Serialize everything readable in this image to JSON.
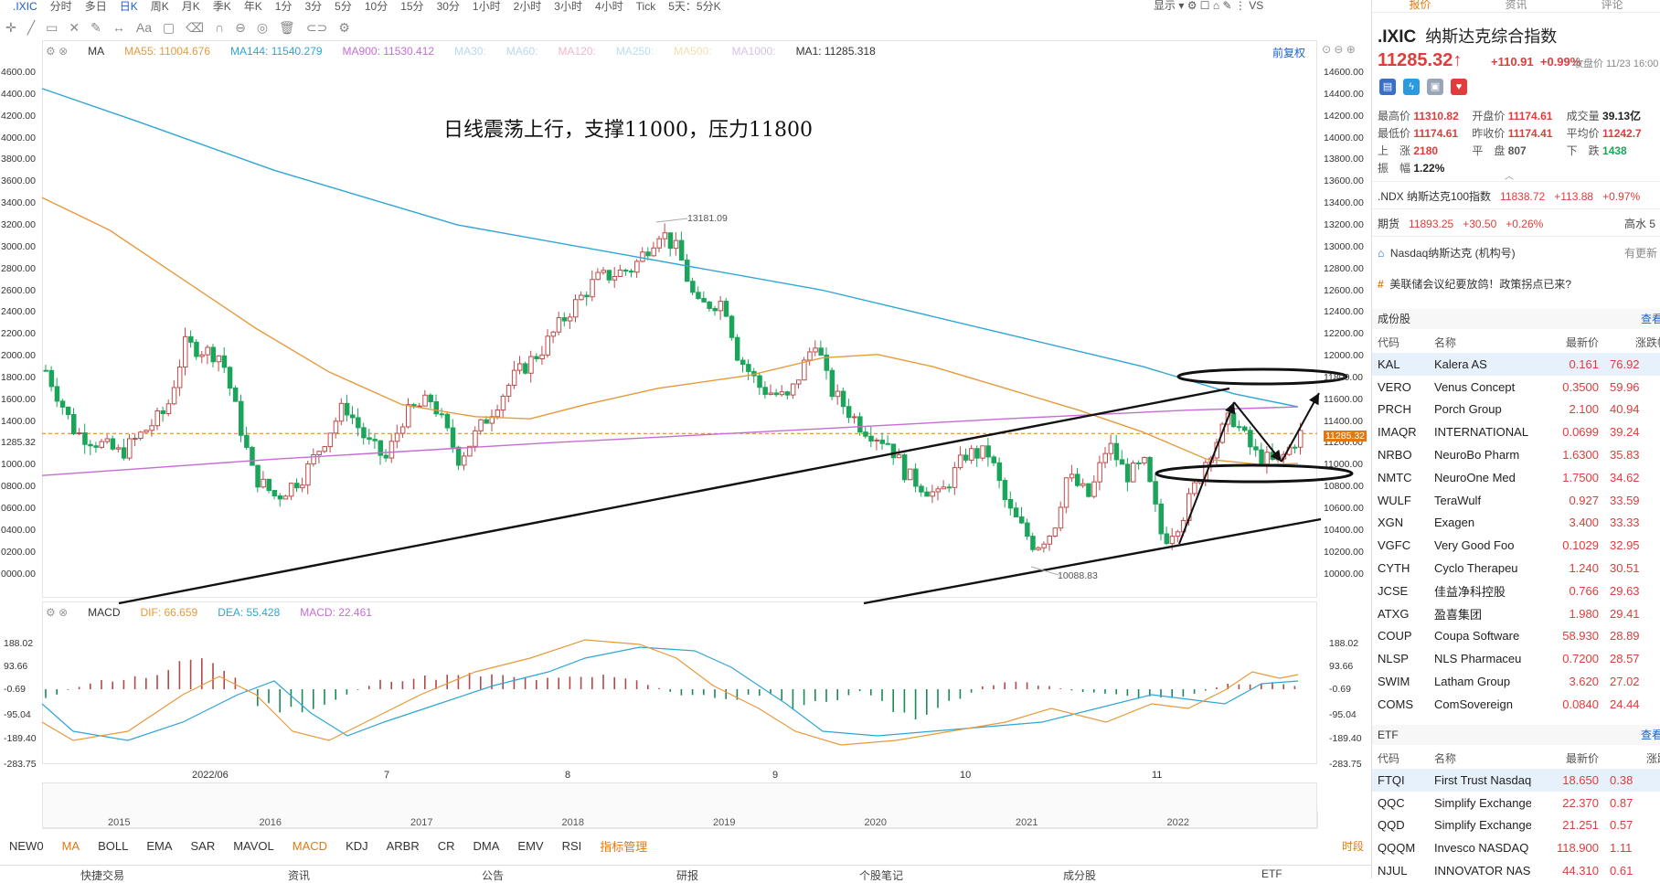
{
  "topbar": {
    "symbol": ".IXIC",
    "periods": [
      "分时",
      "多日",
      "日K",
      "周K",
      "月K",
      "季K",
      "年K",
      "1分",
      "3分",
      "5分",
      "10分",
      "15分",
      "30分",
      "1小时",
      "2小时",
      "3小时",
      "4小时",
      "Tick",
      "5天：5分K"
    ],
    "active_period": "日K",
    "display": "显示",
    "vs": "VS"
  },
  "main": {
    "ma_legend": {
      "label": "MA",
      "ma55": "MA55: 11004.676",
      "ma144": "MA144: 11540.279",
      "ma900": "MA900: 11530.412",
      "ma30": "MA30:",
      "ma60": "MA60:",
      "ma120": "MA120:",
      "ma250": "MA250:",
      "ma500": "MA500:",
      "ma1000": "MA1000:",
      "ma1": "MA1: 11285.318"
    },
    "fq": "前复权",
    "annotation": "日线震荡上行，支撑11000，压力11800",
    "high_label": "13181.09",
    "low_label": "10088.83",
    "current_price_tag": "11285.32",
    "y_ticks": [
      "14600.00",
      "14400.00",
      "14200.00",
      "14000.00",
      "13800.00",
      "13600.00",
      "13400.00",
      "13200.00",
      "13000.00",
      "12800.00",
      "12600.00",
      "12400.00",
      "12200.00",
      "12000.00",
      "11800.00",
      "11600.00",
      "11400.00",
      "11200.00",
      "11000.00",
      "10800.00",
      "10600.00",
      "10400.00",
      "10200.00",
      "10000.00"
    ],
    "y_ticks_left": [
      "4600.00",
      "4400.00",
      "4200.00",
      "4000.00",
      "3800.00",
      "3600.00",
      "3400.00",
      "3200.00",
      "3000.00",
      "2800.00",
      "2600.00",
      "2400.00",
      "2200.00",
      "2000.00",
      "1800.00",
      "1600.00",
      "1400.00",
      "1285.32",
      "1000.00",
      "0800.00",
      "0600.00",
      "0400.00",
      "0200.00",
      "0000.00"
    ],
    "x_labels": [
      "2022/06",
      "7",
      "8",
      "9",
      "10",
      "11"
    ]
  },
  "macd": {
    "label": "MACD",
    "dif": "DIF: 66.659",
    "dea": "DEA: 55.428",
    "macd": "MACD: 22.461",
    "y_ticks": [
      "188.02",
      "93.66",
      "-0.69",
      "-95.04",
      "-189.40",
      "-283.75"
    ]
  },
  "overview": {
    "years": [
      "2015",
      "2016",
      "2017",
      "2018",
      "2019",
      "2020",
      "2021",
      "2022"
    ]
  },
  "indicators": {
    "items": [
      "NEW0",
      "MA",
      "BOLL",
      "EMA",
      "SAR",
      "MAVOL",
      "MACD",
      "KDJ",
      "ARBR",
      "CR",
      "DMA",
      "EMV",
      "RSI"
    ],
    "active": [
      "MA",
      "MACD"
    ],
    "manage": "指标管理",
    "time": "时段"
  },
  "bottombar": {
    "items": [
      "快捷交易",
      "资讯",
      "公告",
      "研报",
      "个股笔记",
      "成分股",
      "ETF"
    ]
  },
  "right": {
    "tabs": [
      "报价",
      "资讯",
      "评论"
    ],
    "symbol": ".IXIC",
    "name": "纳斯达克综合指数",
    "price": "11285.32",
    "arrow": "↑",
    "change": "+110.91",
    "pct": "+0.99%",
    "close_time": "收盘价 11/23 16:00",
    "quote": [
      [
        {
          "k": "最高价",
          "v": "11310.82"
        },
        {
          "k": "开盘价",
          "v": "11174.61"
        },
        {
          "k": "成交量",
          "v": "39.13亿"
        }
      ],
      [
        {
          "k": "最低价",
          "v": "11174.61"
        },
        {
          "k": "昨收价",
          "v": "11174.41"
        },
        {
          "k": "平均价",
          "v": "11242.7"
        }
      ],
      [
        {
          "k": "上　涨",
          "v": "2180"
        },
        {
          "k": "平　盘",
          "v": "807"
        },
        {
          "k": "下　跌",
          "v": "1438"
        }
      ],
      [
        {
          "k": "振　幅",
          "v": "1.22%"
        },
        {
          "k": "",
          "v": ""
        },
        {
          "k": "",
          "v": ""
        }
      ]
    ],
    "ndx": {
      "name": ".NDX 纳斯达克100指数",
      "price": "11838.72",
      "chg": "+113.88",
      "pct": "+0.97%"
    },
    "fut": {
      "label": "期货",
      "price": "11893.25",
      "chg": "+30.50",
      "pct": "+0.26%",
      "extra": "高水 5"
    },
    "inst": {
      "label": "Nasdaq纳斯达克 (机构号)",
      "more": "有更新"
    },
    "news": "美联储会议纪要放鸽！政策拐点已来?",
    "components": {
      "title": "成份股",
      "more": "查看",
      "headers": [
        "代码",
        "名称",
        "最新价",
        "涨跌幅"
      ],
      "rows": [
        [
          "KAL",
          "Kalera AS",
          "0.161",
          "76.92"
        ],
        [
          "VERO",
          "Venus Concept",
          "0.3500",
          "59.96"
        ],
        [
          "PRCH",
          "Porch Group",
          "2.100",
          "40.94"
        ],
        [
          "IMAQR",
          "INTERNATIONAL",
          "0.0699",
          "39.24"
        ],
        [
          "NRBO",
          "NeuroBo Pharm",
          "1.6300",
          "35.83"
        ],
        [
          "NMTC",
          "NeuroOne Med",
          "1.7500",
          "34.62"
        ],
        [
          "WULF",
          "TeraWulf",
          "0.927",
          "33.59"
        ],
        [
          "XGN",
          "Exagen",
          "3.400",
          "33.33"
        ],
        [
          "VGFC",
          "Very Good Foo",
          "0.1029",
          "32.95"
        ],
        [
          "CYTH",
          "Cyclo Therapeu",
          "1.240",
          "30.51"
        ],
        [
          "JCSE",
          "佳益净科控股",
          "0.766",
          "29.63"
        ],
        [
          "ATXG",
          "盈喜集团",
          "1.980",
          "29.41"
        ],
        [
          "COUP",
          "Coupa Software",
          "58.930",
          "28.89"
        ],
        [
          "NLSP",
          "NLS Pharmaceu",
          "0.7200",
          "28.57"
        ],
        [
          "SWIM",
          "Latham Group",
          "3.620",
          "27.02"
        ],
        [
          "COMS",
          "ComSovereign",
          "0.0840",
          "24.44"
        ]
      ]
    },
    "etf": {
      "title": "ETF",
      "more": "查看",
      "headers": [
        "代码",
        "名称",
        "最新价",
        "涨跌"
      ],
      "rows": [
        [
          "FTQI",
          "First Trust Nasdaq",
          "18.650",
          "0.38"
        ],
        [
          "QQC",
          "Simplify Exchange",
          "22.370",
          "0.87"
        ],
        [
          "QQD",
          "Simplify Exchange",
          "21.251",
          "0.57"
        ],
        [
          "QQQM",
          "Invesco NASDAQ",
          "118.900",
          "1.11"
        ],
        [
          "NJUL",
          "INNOVATOR NAS",
          "44.310",
          "0.61"
        ]
      ]
    }
  },
  "colors": {
    "up": "#e23b3b",
    "down": "#1aa55a",
    "ma55": "#e69a3c",
    "ma144": "#2ea6d6",
    "ma900": "#c66cd6",
    "accent": "#1a62c8",
    "orange": "#e07a10"
  }
}
